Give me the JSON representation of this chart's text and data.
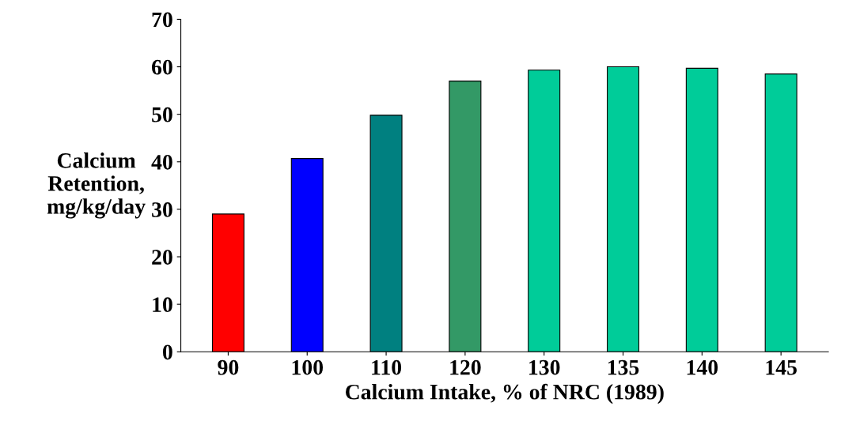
{
  "chart_data": {
    "type": "bar",
    "xlabel": "Calcium Intake, % of NRC (1989)",
    "ylabel": "Calcium\nRetention,\nmg/kg/day",
    "categories": [
      "90",
      "100",
      "110",
      "120",
      "130",
      "135",
      "140",
      "145"
    ],
    "values": [
      29,
      40.7,
      49.8,
      57,
      59.3,
      60,
      59.7,
      58.5
    ],
    "colors": [
      "#ff0000",
      "#0000ff",
      "#008080",
      "#339966",
      "#00cc99",
      "#00cc99",
      "#00cc99",
      "#00cc99"
    ],
    "ylim": [
      0,
      70
    ],
    "yticks": [
      0,
      10,
      20,
      30,
      40,
      50,
      60,
      70
    ],
    "grid": false
  }
}
